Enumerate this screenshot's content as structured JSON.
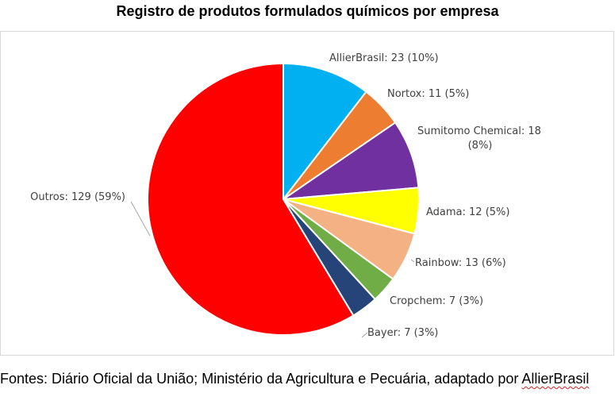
{
  "title": "Registro de produtos formulados químicos por empresa",
  "source": {
    "prefix": "Fontes: Diário Oficial da União; Ministério da Agricultura e Pecuária, adaptado por ",
    "highlight": "AllierBrasil"
  },
  "chart_data": {
    "type": "pie",
    "title": "Registro de produtos formulados químicos por empresa",
    "start_angle_deg": 0,
    "direction": "clockwise",
    "slices": [
      {
        "name": "AllierBrasil",
        "value": 23,
        "percent": "10%",
        "color": "#00b0f0",
        "label_lines": [
          "AllierBrasil: 23 (10%)"
        ]
      },
      {
        "name": "Nortox",
        "value": 11,
        "percent": "5%",
        "color": "#ed7d31",
        "label_lines": [
          "Nortox: 11 (5%)"
        ]
      },
      {
        "name": "Sumitomo Chemical",
        "value": 18,
        "percent": "8%",
        "color": "#7030a0",
        "label_lines": [
          "Sumitomo Chemical: 18",
          "(8%)"
        ]
      },
      {
        "name": "Adama",
        "value": 12,
        "percent": "5%",
        "color": "#ffff00",
        "label_lines": [
          "Adama: 12 (5%)"
        ]
      },
      {
        "name": "Rainbow",
        "value": 13,
        "percent": "6%",
        "color": "#f4b183",
        "label_lines": [
          "Rainbow: 13 (6%)"
        ]
      },
      {
        "name": "Cropchem",
        "value": 7,
        "percent": "3%",
        "color": "#70ad47",
        "label_lines": [
          "Cropchem: 7 (3%)"
        ]
      },
      {
        "name": "Bayer",
        "value": 7,
        "percent": "3%",
        "color": "#264478",
        "label_lines": [
          "Bayer: 7 (3%)"
        ]
      },
      {
        "name": "Outros",
        "value": 129,
        "percent": "59%",
        "color": "#ff0000",
        "label_lines": [
          "Outros: 129 (59%)"
        ]
      }
    ]
  }
}
